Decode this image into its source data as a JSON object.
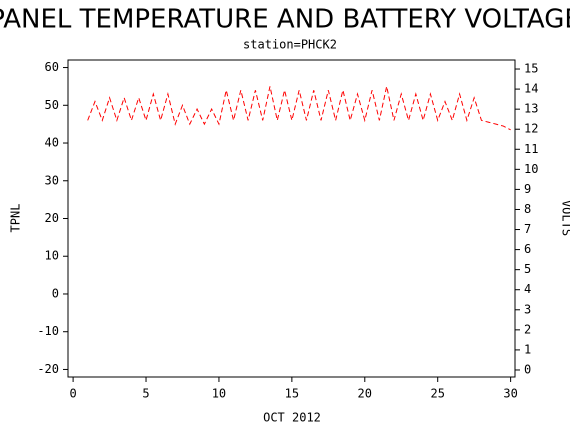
{
  "chart_data": {
    "type": "line",
    "title": "PANEL TEMPERATURE AND BATTERY VOLTAGE",
    "subtitle": "station=PHCK2",
    "xlabel": "OCT 2012",
    "ylabel": "TPNL",
    "y2label": "VOLTS",
    "x": [
      1,
      1.5,
      2,
      2.5,
      3,
      3.5,
      4,
      4.5,
      5,
      5.5,
      6,
      6.5,
      7,
      7.5,
      8,
      8.5,
      9,
      9.5,
      10,
      10.5,
      11,
      11.5,
      12,
      12.5,
      13,
      13.5,
      14,
      14.5,
      15,
      15.5,
      16,
      16.5,
      17,
      17.5,
      18,
      18.5,
      19,
      19.5,
      20,
      20.5,
      21,
      21.5,
      22,
      22.5,
      23,
      23.5,
      24,
      24.5,
      25,
      25.5,
      26,
      26.5,
      27,
      27.5,
      28,
      28.5,
      29,
      29.5,
      30
    ],
    "values": [
      46,
      51,
      46,
      52,
      46,
      52,
      46,
      52,
      46,
      53,
      46,
      53,
      45,
      50,
      45,
      49,
      45,
      49,
      45,
      54,
      46,
      54,
      46,
      54,
      46,
      55,
      46,
      54,
      46,
      54,
      46,
      54,
      46,
      54,
      46,
      54,
      46,
      53,
      46,
      54,
      46,
      55,
      46,
      53,
      46,
      53,
      46,
      53,
      46,
      51,
      46,
      53,
      46,
      52,
      46,
      45.5,
      45,
      44.5,
      43.5
    ],
    "color": "#ff0000",
    "line_style": "dashed",
    "xlim": [
      -0.35,
      30.3
    ],
    "xticks": [
      0,
      5,
      10,
      15,
      20,
      25,
      30
    ],
    "ylim": [
      -22,
      62
    ],
    "yticks": [
      -20,
      -10,
      0,
      10,
      20,
      30,
      40,
      50,
      60
    ],
    "y2lim": [
      -0.35,
      15.45
    ],
    "y2ticks": [
      0,
      1,
      2,
      3,
      4,
      5,
      6,
      7,
      8,
      9,
      10,
      11,
      12,
      13,
      14,
      15
    ]
  }
}
